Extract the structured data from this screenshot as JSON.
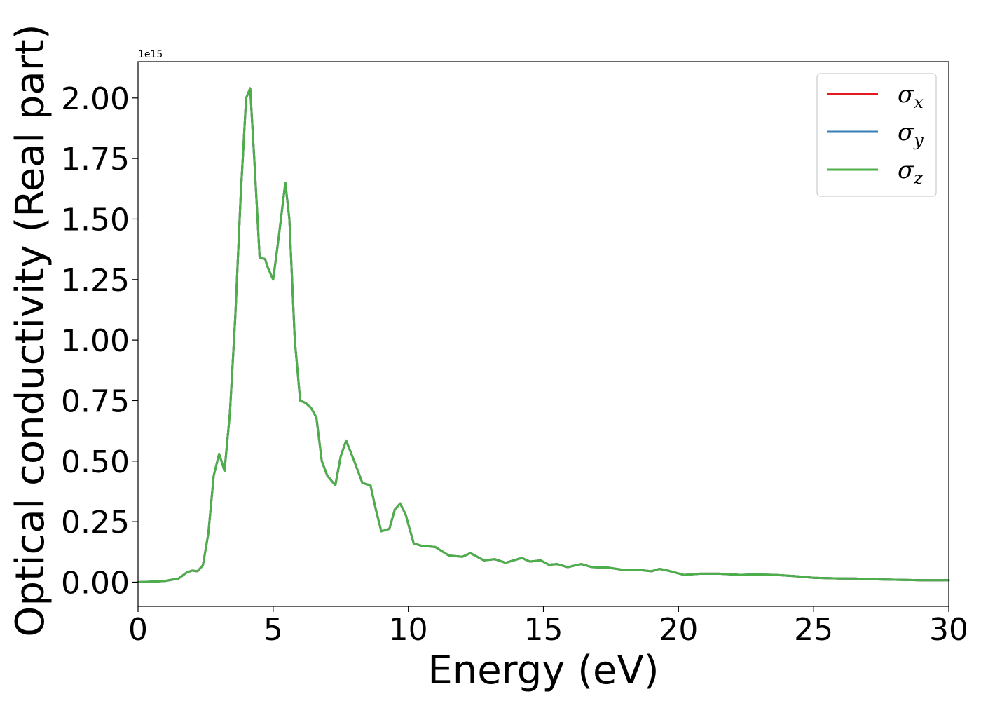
{
  "chart_data": {
    "type": "line",
    "xlabel": "Energy (eV)",
    "ylabel": "Optical conductivity (Real part)",
    "y_offset_label": "1e15",
    "y_scale": 1000000000000000.0,
    "xlim": [
      0,
      30
    ],
    "ylim": [
      -0.1,
      2.15
    ],
    "xticks": [
      0,
      5,
      10,
      15,
      20,
      25,
      30
    ],
    "xtick_labels": [
      "0",
      "5",
      "10",
      "15",
      "20",
      "25",
      "30"
    ],
    "yticks": [
      0,
      0.25,
      0.5,
      0.75,
      1.0,
      1.25,
      1.5,
      1.75,
      2.0
    ],
    "ytick_labels": [
      "0.00",
      "0.25",
      "0.50",
      "0.75",
      "1.00",
      "1.25",
      "1.50",
      "1.75",
      "2.00"
    ],
    "grid": false,
    "legend_position": "top-right",
    "x": [
      0,
      0.5,
      1.0,
      1.5,
      1.8,
      2.0,
      2.2,
      2.4,
      2.6,
      2.8,
      3.0,
      3.2,
      3.4,
      3.6,
      3.8,
      4.0,
      4.15,
      4.3,
      4.5,
      4.7,
      4.8,
      5.0,
      5.2,
      5.45,
      5.6,
      5.8,
      6.0,
      6.2,
      6.4,
      6.6,
      6.8,
      7.0,
      7.3,
      7.5,
      7.7,
      8.0,
      8.3,
      8.6,
      8.8,
      9.0,
      9.3,
      9.5,
      9.7,
      9.9,
      10.2,
      10.5,
      11.0,
      11.5,
      12.0,
      12.3,
      12.8,
      13.2,
      13.6,
      14.2,
      14.5,
      14.9,
      15.2,
      15.5,
      15.9,
      16.4,
      16.8,
      17.4,
      18.0,
      18.6,
      19.0,
      19.3,
      19.6,
      20.2,
      20.8,
      21.5,
      22.3,
      22.8,
      23.6,
      24.3,
      25.0,
      26.0,
      26.5,
      27.2,
      28.0,
      29.0,
      30.0
    ],
    "series": [
      {
        "name": "σx",
        "legend_main": "σ",
        "legend_sub": "x",
        "color": "#e41a1c",
        "values": [
          0.0,
          0.002,
          0.005,
          0.015,
          0.04,
          0.048,
          0.045,
          0.07,
          0.2,
          0.44,
          0.53,
          0.46,
          0.7,
          1.1,
          1.6,
          2.0,
          2.04,
          1.75,
          1.34,
          1.335,
          1.3,
          1.25,
          1.42,
          1.65,
          1.5,
          1.0,
          0.75,
          0.74,
          0.72,
          0.68,
          0.5,
          0.44,
          0.4,
          0.52,
          0.585,
          0.5,
          0.41,
          0.4,
          0.3,
          0.21,
          0.22,
          0.3,
          0.325,
          0.28,
          0.16,
          0.15,
          0.145,
          0.11,
          0.105,
          0.12,
          0.09,
          0.095,
          0.08,
          0.1,
          0.085,
          0.09,
          0.072,
          0.075,
          0.062,
          0.075,
          0.062,
          0.06,
          0.05,
          0.05,
          0.045,
          0.055,
          0.048,
          0.03,
          0.035,
          0.035,
          0.03,
          0.032,
          0.03,
          0.025,
          0.018,
          0.015,
          0.015,
          0.012,
          0.01,
          0.008,
          0.008
        ]
      },
      {
        "name": "σy",
        "legend_main": "σ",
        "legend_sub": "y",
        "color": "#377eb8",
        "values": [
          0.0,
          0.002,
          0.005,
          0.015,
          0.04,
          0.048,
          0.045,
          0.07,
          0.2,
          0.44,
          0.53,
          0.46,
          0.7,
          1.1,
          1.6,
          2.0,
          2.04,
          1.75,
          1.34,
          1.335,
          1.3,
          1.25,
          1.42,
          1.65,
          1.5,
          1.0,
          0.75,
          0.74,
          0.72,
          0.68,
          0.5,
          0.44,
          0.4,
          0.52,
          0.585,
          0.5,
          0.41,
          0.4,
          0.3,
          0.21,
          0.22,
          0.3,
          0.325,
          0.28,
          0.16,
          0.15,
          0.145,
          0.11,
          0.105,
          0.12,
          0.09,
          0.095,
          0.08,
          0.1,
          0.085,
          0.09,
          0.072,
          0.075,
          0.062,
          0.075,
          0.062,
          0.06,
          0.05,
          0.05,
          0.045,
          0.055,
          0.048,
          0.03,
          0.035,
          0.035,
          0.03,
          0.032,
          0.03,
          0.025,
          0.018,
          0.015,
          0.015,
          0.012,
          0.01,
          0.008,
          0.008
        ]
      },
      {
        "name": "σz",
        "legend_main": "σ",
        "legend_sub": "z",
        "color": "#4daf4a",
        "values": [
          0.0,
          0.002,
          0.005,
          0.015,
          0.04,
          0.048,
          0.045,
          0.07,
          0.2,
          0.44,
          0.53,
          0.46,
          0.7,
          1.1,
          1.6,
          2.0,
          2.04,
          1.75,
          1.34,
          1.335,
          1.3,
          1.25,
          1.42,
          1.65,
          1.5,
          1.0,
          0.75,
          0.74,
          0.72,
          0.68,
          0.5,
          0.44,
          0.4,
          0.52,
          0.585,
          0.5,
          0.41,
          0.4,
          0.3,
          0.21,
          0.22,
          0.3,
          0.325,
          0.28,
          0.16,
          0.15,
          0.145,
          0.11,
          0.105,
          0.12,
          0.09,
          0.095,
          0.08,
          0.1,
          0.085,
          0.09,
          0.072,
          0.075,
          0.062,
          0.075,
          0.062,
          0.06,
          0.05,
          0.05,
          0.045,
          0.055,
          0.048,
          0.03,
          0.035,
          0.035,
          0.03,
          0.032,
          0.03,
          0.025,
          0.018,
          0.015,
          0.015,
          0.012,
          0.01,
          0.008,
          0.008
        ]
      }
    ]
  }
}
